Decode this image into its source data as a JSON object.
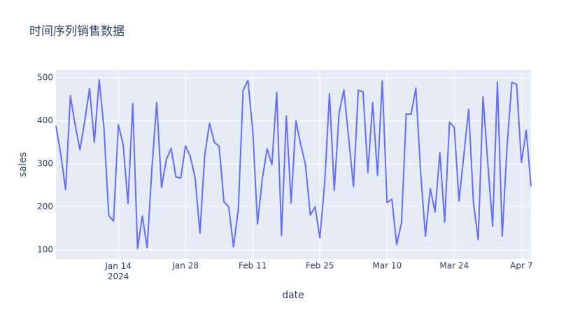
{
  "chart_data": {
    "type": "line",
    "title": "时间序列销售数据",
    "x_label": "date",
    "y_label": "sales",
    "color": "#636efa",
    "background": "#e5ecf6",
    "grid": true,
    "x": [
      "2024-01-01",
      "2024-01-02",
      "2024-01-03",
      "2024-01-04",
      "2024-01-05",
      "2024-01-06",
      "2024-01-07",
      "2024-01-08",
      "2024-01-09",
      "2024-01-10",
      "2024-01-11",
      "2024-01-12",
      "2024-01-13",
      "2024-01-14",
      "2024-01-15",
      "2024-01-16",
      "2024-01-17",
      "2024-01-18",
      "2024-01-19",
      "2024-01-20",
      "2024-01-21",
      "2024-01-22",
      "2024-01-23",
      "2024-01-24",
      "2024-01-25",
      "2024-01-26",
      "2024-01-27",
      "2024-01-28",
      "2024-01-29",
      "2024-01-30",
      "2024-01-31",
      "2024-02-01",
      "2024-02-02",
      "2024-02-03",
      "2024-02-04",
      "2024-02-05",
      "2024-02-06",
      "2024-02-07",
      "2024-02-08",
      "2024-02-09",
      "2024-02-10",
      "2024-02-11",
      "2024-02-12",
      "2024-02-13",
      "2024-02-14",
      "2024-02-15",
      "2024-02-16",
      "2024-02-17",
      "2024-02-18",
      "2024-02-19",
      "2024-02-20",
      "2024-02-21",
      "2024-02-22",
      "2024-02-23",
      "2024-02-24",
      "2024-02-25",
      "2024-02-26",
      "2024-02-27",
      "2024-02-28",
      "2024-02-29",
      "2024-03-01",
      "2024-03-02",
      "2024-03-03",
      "2024-03-04",
      "2024-03-05",
      "2024-03-06",
      "2024-03-07",
      "2024-03-08",
      "2024-03-09",
      "2024-03-10",
      "2024-03-11",
      "2024-03-12",
      "2024-03-13",
      "2024-03-14",
      "2024-03-15",
      "2024-03-16",
      "2024-03-17",
      "2024-03-18",
      "2024-03-19",
      "2024-03-20",
      "2024-03-21",
      "2024-03-22",
      "2024-03-23",
      "2024-03-24",
      "2024-03-25",
      "2024-03-26",
      "2024-03-27",
      "2024-03-28",
      "2024-03-29",
      "2024-03-30",
      "2024-03-31",
      "2024-04-01",
      "2024-04-02",
      "2024-04-03",
      "2024-04-04",
      "2024-04-05",
      "2024-04-06",
      "2024-04-07",
      "2024-04-08",
      "2024-04-09"
    ],
    "values": [
      388,
      322,
      240,
      458,
      390,
      333,
      400,
      475,
      350,
      495,
      383,
      180,
      167,
      391,
      345,
      208,
      440,
      103,
      179,
      105,
      290,
      443,
      245,
      310,
      336,
      270,
      267,
      342,
      317,
      267,
      139,
      320,
      394,
      350,
      341,
      212,
      200,
      107,
      195,
      470,
      494,
      380,
      160,
      265,
      335,
      298,
      466,
      133,
      411,
      209,
      400,
      345,
      298,
      181,
      200,
      128,
      255,
      463,
      238,
      418,
      472,
      360,
      247,
      471,
      467,
      280,
      442,
      273,
      493,
      210,
      218,
      113,
      162,
      416,
      415,
      476,
      280,
      132,
      243,
      188,
      326,
      165,
      397,
      385,
      214,
      320,
      427,
      210,
      124,
      456,
      300,
      155,
      490,
      132,
      340,
      489,
      485,
      303,
      378,
      248
    ],
    "xlim": [
      "2024-01-01",
      "2024-04-09"
    ],
    "xticks": [
      {
        "value": "2024-01-14",
        "label": "Jan 14\n2024"
      },
      {
        "value": "2024-01-28",
        "label": "Jan 28"
      },
      {
        "value": "2024-02-11",
        "label": "Feb 11"
      },
      {
        "value": "2024-02-25",
        "label": "Feb 25"
      },
      {
        "value": "2024-03-10",
        "label": "Mar 10"
      },
      {
        "value": "2024-03-24",
        "label": "Mar 24"
      },
      {
        "value": "2024-04-07",
        "label": "Apr 7"
      }
    ],
    "ylim": [
      79,
      518
    ],
    "yticks": [
      100,
      200,
      300,
      400,
      500
    ]
  }
}
